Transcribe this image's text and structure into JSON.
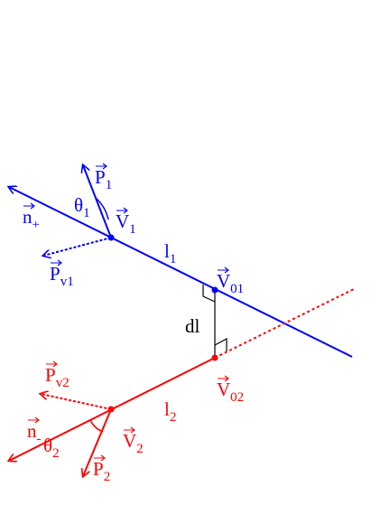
{
  "labels": [
    {
      "base": "P",
      "sub": "1",
      "vector": true,
      "color": "#0000ff"
    },
    {
      "base": "θ",
      "sub": "1",
      "vector": false,
      "color": "#0000ff"
    },
    {
      "base": "V",
      "sub": "1",
      "vector": true,
      "color": "#0000ff"
    },
    {
      "base": "n",
      "sub": "+",
      "vector": true,
      "color": "#0000ff"
    },
    {
      "base": "P",
      "sub": "v1",
      "vector": true,
      "color": "#0000ff"
    },
    {
      "base": "l",
      "sub": "1",
      "vector": false,
      "color": "#0000ff"
    },
    {
      "base": "V",
      "sub": "01",
      "vector": true,
      "color": "#0000ff"
    },
    {
      "base": "dl",
      "sub": "",
      "vector": false,
      "color": "#000000"
    },
    {
      "base": "P",
      "sub": "v2",
      "vector": true,
      "color": "#ff0000"
    },
    {
      "base": "V",
      "sub": "02",
      "vector": true,
      "color": "#ff0000"
    },
    {
      "base": "l",
      "sub": "2",
      "vector": false,
      "color": "#ff0000"
    },
    {
      "base": "n",
      "sub": "-",
      "vector": true,
      "color": "#ff0000"
    },
    {
      "base": "θ",
      "sub": "2",
      "vector": false,
      "color": "#ff0000"
    },
    {
      "base": "V",
      "sub": "2",
      "vector": true,
      "color": "#ff0000"
    },
    {
      "base": "P",
      "sub": "2",
      "vector": true,
      "color": "#ff0000"
    }
  ]
}
